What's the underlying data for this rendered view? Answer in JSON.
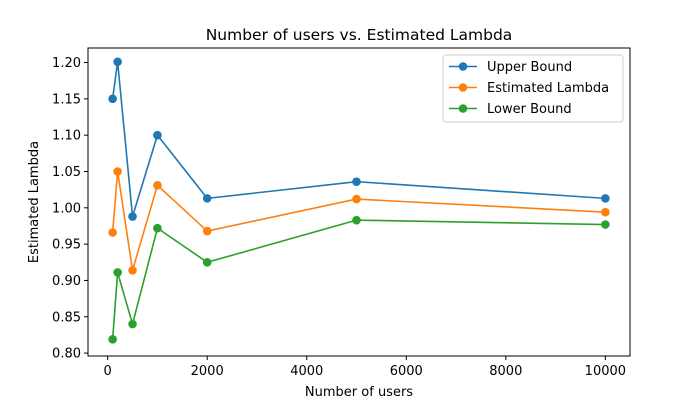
{
  "chart_data": {
    "type": "line",
    "title": "Number of users vs. Estimated Lambda",
    "xlabel": "Number of users",
    "ylabel": "Estimated Lambda",
    "x": [
      100,
      200,
      500,
      1000,
      2000,
      5000,
      10000
    ],
    "series": [
      {
        "name": "Upper Bound",
        "color": "#1f77b4",
        "values": [
          1.15,
          1.201,
          0.988,
          1.1,
          1.013,
          1.036,
          1.013
        ]
      },
      {
        "name": "Estimated Lambda",
        "color": "#ff7f0e",
        "values": [
          0.966,
          1.05,
          0.914,
          1.031,
          0.968,
          1.012,
          0.994
        ]
      },
      {
        "name": "Lower Bound",
        "color": "#2ca02c",
        "values": [
          0.819,
          0.911,
          0.84,
          0.972,
          0.925,
          0.983,
          0.977
        ]
      }
    ],
    "xlim": [
      -395,
      10495
    ],
    "ylim": [
      0.796,
      1.22
    ],
    "xticks": [
      0,
      2000,
      4000,
      6000,
      8000,
      10000
    ],
    "yticks": [
      0.8,
      0.85,
      0.9,
      0.95,
      1.0,
      1.05,
      1.1,
      1.15,
      1.2
    ],
    "xtick_labels": [
      "0",
      "2000",
      "4000",
      "6000",
      "8000",
      "10000"
    ],
    "ytick_labels": [
      "0.80",
      "0.85",
      "0.90",
      "0.95",
      "1.00",
      "1.05",
      "1.10",
      "1.15",
      "1.20"
    ],
    "grid": false,
    "legend_position": "top-right",
    "marker": "circle"
  }
}
